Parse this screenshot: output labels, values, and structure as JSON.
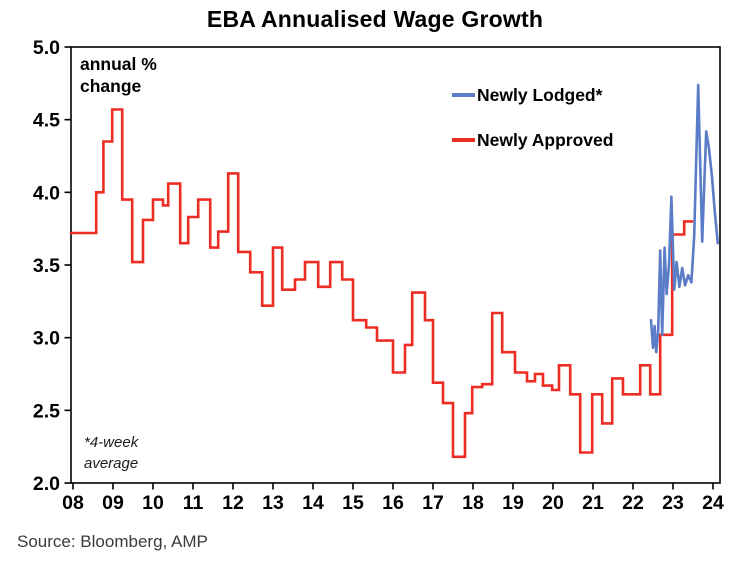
{
  "title": "EBA Annualised Wage Growth",
  "annotations": {
    "axis_note_line1": "annual %",
    "axis_note_line2": "change",
    "footnote_line1": "*4-week",
    "footnote_line2": "average",
    "source": "Source: Bloomberg, AMP"
  },
  "colors": {
    "newly_lodged_blue": "#5B7CC7",
    "newly_approved_red": "#ED2D24",
    "axis_black": "#000000",
    "source_gray": "#3b3b3b"
  },
  "chart_data": {
    "type": "line",
    "title": "EBA Annualised Wage Growth",
    "ylabel": "annual % change",
    "grid": false,
    "legend_position": "top-right",
    "ylim": [
      2.0,
      5.0
    ],
    "xlim": [
      2007.95,
      2024.175
    ],
    "y_ticks": [
      {
        "v": 5.0,
        "label": "5.0"
      },
      {
        "v": 4.5,
        "label": "4.5"
      },
      {
        "v": 4.0,
        "label": "4.0"
      },
      {
        "v": 3.5,
        "label": "3.5"
      },
      {
        "v": 3.0,
        "label": "3.0"
      },
      {
        "v": 2.5,
        "label": "2.5"
      },
      {
        "v": 2.0,
        "label": "2.0"
      }
    ],
    "x_ticks": [
      {
        "t": 2008,
        "label": "08"
      },
      {
        "t": 2009,
        "label": "09"
      },
      {
        "t": 2010,
        "label": "10"
      },
      {
        "t": 2011,
        "label": "11"
      },
      {
        "t": 2012,
        "label": "12"
      },
      {
        "t": 2013,
        "label": "13"
      },
      {
        "t": 2014,
        "label": "14"
      },
      {
        "t": 2015,
        "label": "15"
      },
      {
        "t": 2016,
        "label": "16"
      },
      {
        "t": 2017,
        "label": "17"
      },
      {
        "t": 2018,
        "label": "18"
      },
      {
        "t": 2019,
        "label": "19"
      },
      {
        "t": 2020,
        "label": "20"
      },
      {
        "t": 2021,
        "label": "21"
      },
      {
        "t": 2022,
        "label": "22"
      },
      {
        "t": 2023,
        "label": "23"
      },
      {
        "t": 2024,
        "label": "24"
      }
    ],
    "series": [
      {
        "name": "Newly Lodged*",
        "color": "#5B7CC7",
        "mode": "line",
        "points": [
          [
            2022.45,
            3.12
          ],
          [
            2022.5,
            2.93
          ],
          [
            2022.54,
            3.08
          ],
          [
            2022.58,
            2.9
          ],
          [
            2022.63,
            3.05
          ],
          [
            2022.68,
            3.6
          ],
          [
            2022.73,
            3.02
          ],
          [
            2022.79,
            3.62
          ],
          [
            2022.84,
            3.3
          ],
          [
            2022.9,
            3.5
          ],
          [
            2022.96,
            3.97
          ],
          [
            2023.03,
            3.33
          ],
          [
            2023.09,
            3.52
          ],
          [
            2023.16,
            3.35
          ],
          [
            2023.23,
            3.48
          ],
          [
            2023.3,
            3.36
          ],
          [
            2023.38,
            3.43
          ],
          [
            2023.46,
            3.38
          ],
          [
            2023.53,
            3.7
          ],
          [
            2023.63,
            4.74
          ],
          [
            2023.73,
            3.66
          ],
          [
            2023.83,
            4.42
          ],
          [
            2023.9,
            4.3
          ],
          [
            2023.97,
            4.12
          ],
          [
            2024.05,
            3.85
          ],
          [
            2024.12,
            3.65
          ]
        ]
      },
      {
        "name": "Newly Approved",
        "color": "#ED2D24",
        "mode": "step",
        "end": 2023.48,
        "points": [
          [
            2007.95,
            3.72
          ],
          [
            2008.58,
            4.0
          ],
          [
            2008.76,
            4.35
          ],
          [
            2008.98,
            4.57
          ],
          [
            2009.23,
            3.95
          ],
          [
            2009.48,
            3.52
          ],
          [
            2009.75,
            3.81
          ],
          [
            2010.0,
            3.95
          ],
          [
            2010.25,
            3.91
          ],
          [
            2010.38,
            4.06
          ],
          [
            2010.68,
            3.65
          ],
          [
            2010.88,
            3.83
          ],
          [
            2011.13,
            3.95
          ],
          [
            2011.43,
            3.62
          ],
          [
            2011.63,
            3.73
          ],
          [
            2011.88,
            4.13
          ],
          [
            2012.13,
            3.59
          ],
          [
            2012.43,
            3.45
          ],
          [
            2012.73,
            3.22
          ],
          [
            2013.0,
            3.62
          ],
          [
            2013.23,
            3.33
          ],
          [
            2013.55,
            3.4
          ],
          [
            2013.8,
            3.52
          ],
          [
            2014.13,
            3.35
          ],
          [
            2014.43,
            3.52
          ],
          [
            2014.73,
            3.4
          ],
          [
            2015.0,
            3.12
          ],
          [
            2015.33,
            3.07
          ],
          [
            2015.6,
            2.98
          ],
          [
            2016.0,
            2.76
          ],
          [
            2016.3,
            2.95
          ],
          [
            2016.48,
            3.31
          ],
          [
            2016.8,
            3.12
          ],
          [
            2017.0,
            2.69
          ],
          [
            2017.25,
            2.55
          ],
          [
            2017.5,
            2.18
          ],
          [
            2017.8,
            2.48
          ],
          [
            2017.98,
            2.66
          ],
          [
            2018.23,
            2.68
          ],
          [
            2018.48,
            3.17
          ],
          [
            2018.73,
            2.9
          ],
          [
            2019.05,
            2.76
          ],
          [
            2019.35,
            2.7
          ],
          [
            2019.55,
            2.75
          ],
          [
            2019.75,
            2.67
          ],
          [
            2019.98,
            2.64
          ],
          [
            2020.15,
            2.81
          ],
          [
            2020.43,
            2.61
          ],
          [
            2020.68,
            2.21
          ],
          [
            2020.98,
            2.61
          ],
          [
            2021.23,
            2.41
          ],
          [
            2021.48,
            2.72
          ],
          [
            2021.75,
            2.61
          ],
          [
            2022.18,
            2.81
          ],
          [
            2022.43,
            2.61
          ],
          [
            2022.68,
            3.02
          ],
          [
            2022.98,
            3.71
          ],
          [
            2023.28,
            3.8
          ]
        ]
      }
    ]
  }
}
